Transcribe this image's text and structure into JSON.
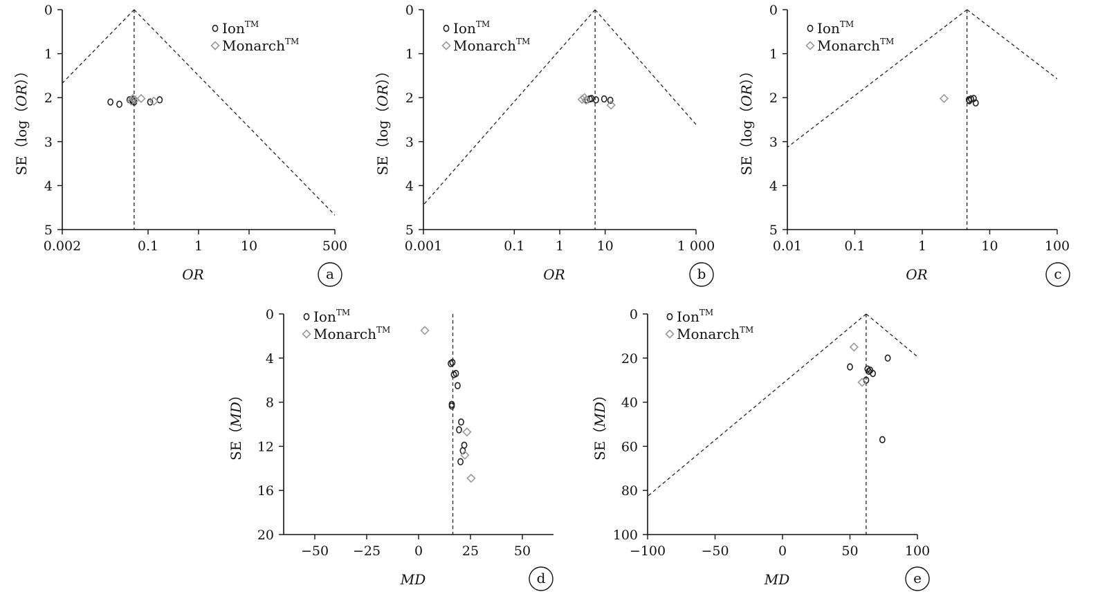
{
  "figure": {
    "panels": [
      {
        "id": "a",
        "panel_label": "a",
        "legend": {
          "ion": "Ion",
          "monarch": "Monarch",
          "superscript": "TM"
        },
        "chart_data": {
          "type": "scatter",
          "subtype": "funnel",
          "xscale": "log",
          "xlabel": "OR",
          "ylabel_prefix": "SE",
          "ylabel_inner": "log（OR）",
          "xlim": [
            0.002,
            500
          ],
          "ylim": [
            0,
            5
          ],
          "y_inverted": true,
          "xticks": [
            {
              "v": 0.002,
              "l": "0.002"
            },
            {
              "v": 0.1,
              "l": "0.1"
            },
            {
              "v": 1,
              "l": "1"
            },
            {
              "v": 10,
              "l": "10"
            },
            {
              "v": 500,
              "l": "500"
            }
          ],
          "yticks": [
            {
              "v": 0,
              "l": "0"
            },
            {
              "v": 1,
              "l": "1"
            },
            {
              "v": 2,
              "l": "2"
            },
            {
              "v": 3,
              "l": "3"
            },
            {
              "v": 4,
              "l": "4"
            },
            {
              "v": 5,
              "l": "5"
            }
          ],
          "pooled_estimate": 0.053,
          "funnel_slope": 1.96,
          "series": [
            {
              "name": "Ion",
              "marker": "circle",
              "points": [
                [
                  0.018,
                  2.1
                ],
                [
                  0.027,
                  2.15
                ],
                [
                  0.043,
                  2.05
                ],
                [
                  0.05,
                  2.08
                ],
                [
                  0.053,
                  2.1
                ],
                [
                  0.049,
                  2.06
                ],
                [
                  0.052,
                  2.04
                ],
                [
                  0.11,
                  2.1
                ],
                [
                  0.17,
                  2.05
                ]
              ]
            },
            {
              "name": "Monarch",
              "marker": "diamond",
              "points": [
                [
                  0.047,
                  2.08
                ],
                [
                  0.05,
                  2.02
                ],
                [
                  0.055,
                  2.05
                ],
                [
                  0.073,
                  2.02
                ],
                [
                  0.13,
                  2.08
                ]
              ]
            }
          ]
        }
      },
      {
        "id": "b",
        "panel_label": "b",
        "legend": {
          "ion": "Ion",
          "monarch": "Monarch",
          "superscript": "TM"
        },
        "chart_data": {
          "type": "scatter",
          "subtype": "funnel",
          "xscale": "log",
          "xlabel": "OR",
          "ylabel_prefix": "SE",
          "ylabel_inner": "log（OR）",
          "xlim": [
            0.001,
            1000
          ],
          "ylim": [
            0,
            5
          ],
          "y_inverted": true,
          "xticks": [
            {
              "v": 0.001,
              "l": "0.001"
            },
            {
              "v": 0.1,
              "l": "0.1"
            },
            {
              "v": 1,
              "l": "1"
            },
            {
              "v": 10,
              "l": "10"
            },
            {
              "v": 1000,
              "l": "1 000"
            }
          ],
          "yticks": [
            {
              "v": 0,
              "l": "0"
            },
            {
              "v": 1,
              "l": "1"
            },
            {
              "v": 2,
              "l": "2"
            },
            {
              "v": 3,
              "l": "3"
            },
            {
              "v": 4,
              "l": "4"
            },
            {
              "v": 5,
              "l": "5"
            }
          ],
          "pooled_estimate": 6.0,
          "funnel_slope": 1.96,
          "series": [
            {
              "name": "Ion",
              "marker": "circle",
              "points": [
                [
                  4.0,
                  2.05
                ],
                [
                  4.6,
                  2.03
                ],
                [
                  5.0,
                  2.02
                ],
                [
                  6.3,
                  2.05
                ],
                [
                  9.5,
                  2.03
                ],
                [
                  13,
                  2.06
                ]
              ]
            },
            {
              "name": "Monarch",
              "marker": "diamond",
              "points": [
                [
                  3.1,
                  2.04
                ],
                [
                  3.5,
                  2.0
                ],
                [
                  3.8,
                  2.06
                ],
                [
                  13.5,
                  2.17
                ]
              ]
            }
          ]
        }
      },
      {
        "id": "c",
        "panel_label": "c",
        "legend": {
          "ion": "Ion",
          "monarch": "Monarch",
          "superscript": "TM"
        },
        "chart_data": {
          "type": "scatter",
          "subtype": "funnel",
          "xscale": "log",
          "xlabel": "OR",
          "ylabel_prefix": "SE",
          "ylabel_inner": "log（OR）",
          "xlim": [
            0.01,
            100
          ],
          "ylim": [
            0,
            5
          ],
          "y_inverted": true,
          "xticks": [
            {
              "v": 0.01,
              "l": "0.01"
            },
            {
              "v": 0.1,
              "l": "0.1"
            },
            {
              "v": 1,
              "l": "1"
            },
            {
              "v": 10,
              "l": "10"
            },
            {
              "v": 100,
              "l": "100"
            }
          ],
          "yticks": [
            {
              "v": 0,
              "l": "0"
            },
            {
              "v": 1,
              "l": "1"
            },
            {
              "v": 2,
              "l": "2"
            },
            {
              "v": 3,
              "l": "3"
            },
            {
              "v": 4,
              "l": "4"
            },
            {
              "v": 5,
              "l": "5"
            }
          ],
          "pooled_estimate": 4.6,
          "funnel_slope": 1.96,
          "series": [
            {
              "name": "Ion",
              "marker": "circle",
              "points": [
                [
                  4.9,
                  2.05
                ],
                [
                  5.3,
                  2.03
                ],
                [
                  5.8,
                  2.02
                ],
                [
                  6.2,
                  2.12
                ],
                [
                  5.0,
                  2.07
                ]
              ]
            },
            {
              "name": "Monarch",
              "marker": "diamond",
              "points": [
                [
                  2.1,
                  2.02
                ]
              ]
            }
          ]
        }
      },
      {
        "id": "d",
        "panel_label": "d",
        "legend": {
          "ion": "Ion",
          "monarch": "Monarch",
          "superscript": "TM"
        },
        "chart_data": {
          "type": "scatter",
          "subtype": "funnel",
          "xscale": "linear",
          "xlabel": "MD",
          "ylabel_prefix": "SE",
          "ylabel_inner": "MD",
          "xlim": [
            -65,
            65
          ],
          "ylim": [
            0,
            20
          ],
          "y_inverted": true,
          "xticks": [
            {
              "v": -50,
              "l": "−50"
            },
            {
              "v": -25,
              "l": "−25"
            },
            {
              "v": 0,
              "l": "0"
            },
            {
              "v": 25,
              "l": "25"
            },
            {
              "v": 50,
              "l": "50"
            }
          ],
          "yticks": [
            {
              "v": 0,
              "l": "0"
            },
            {
              "v": 4,
              "l": "4"
            },
            {
              "v": 8,
              "l": "8"
            },
            {
              "v": 12,
              "l": "12"
            },
            {
              "v": 16,
              "l": "16"
            },
            {
              "v": 20,
              "l": "20"
            }
          ],
          "pooled_estimate": 16.5,
          "funnel_slope": null,
          "series": [
            {
              "name": "Ion",
              "marker": "circle",
              "points": [
                [
                  15.5,
                  4.5
                ],
                [
                  16.3,
                  4.4
                ],
                [
                  18,
                  5.4
                ],
                [
                  17,
                  5.5
                ],
                [
                  18.8,
                  6.5
                ],
                [
                  16,
                  8.2
                ],
                [
                  16,
                  8.35
                ],
                [
                  20.5,
                  9.8
                ],
                [
                  19.5,
                  10.5
                ],
                [
                  22,
                  11.9
                ],
                [
                  21.3,
                  12.4
                ],
                [
                  20.2,
                  13.4
                ]
              ]
            },
            {
              "name": "Monarch",
              "marker": "diamond",
              "points": [
                [
                  3,
                  1.5
                ],
                [
                  23.3,
                  10.7
                ],
                [
                  22.3,
                  12.8
                ],
                [
                  25.3,
                  14.9
                ]
              ]
            }
          ]
        }
      },
      {
        "id": "e",
        "panel_label": "e",
        "legend": {
          "ion": "Ion",
          "monarch": "Monarch",
          "superscript": "TM"
        },
        "chart_data": {
          "type": "scatter",
          "subtype": "funnel",
          "xscale": "linear",
          "xlabel": "MD",
          "ylabel_prefix": "SE",
          "ylabel_inner": "MD",
          "xlim": [
            -100,
            100
          ],
          "ylim": [
            0,
            100
          ],
          "y_inverted": true,
          "xticks": [
            {
              "v": -100,
              "l": "−100"
            },
            {
              "v": -50,
              "l": "−50"
            },
            {
              "v": 0,
              "l": "0"
            },
            {
              "v": 50,
              "l": "50"
            },
            {
              "v": 100,
              "l": "100"
            }
          ],
          "yticks": [
            {
              "v": 0,
              "l": "0"
            },
            {
              "v": 20,
              "l": "20"
            },
            {
              "v": 40,
              "l": "40"
            },
            {
              "v": 60,
              "l": "60"
            },
            {
              "v": 80,
              "l": "80"
            },
            {
              "v": 100,
              "l": "100"
            }
          ],
          "pooled_estimate": 62,
          "funnel_slope": 1.96,
          "series": [
            {
              "name": "Ion",
              "marker": "circle",
              "points": [
                [
                  50,
                  24
                ],
                [
                  63,
                  25
                ],
                [
                  65,
                  25.5
                ],
                [
                  64,
                  26
                ],
                [
                  67,
                  27
                ],
                [
                  62,
                  30
                ],
                [
                  78,
                  20
                ],
                [
                  74,
                  57
                ]
              ]
            },
            {
              "name": "Monarch",
              "marker": "diamond",
              "points": [
                [
                  53,
                  15
                ],
                [
                  59,
                  31
                ]
              ]
            }
          ]
        }
      }
    ]
  }
}
